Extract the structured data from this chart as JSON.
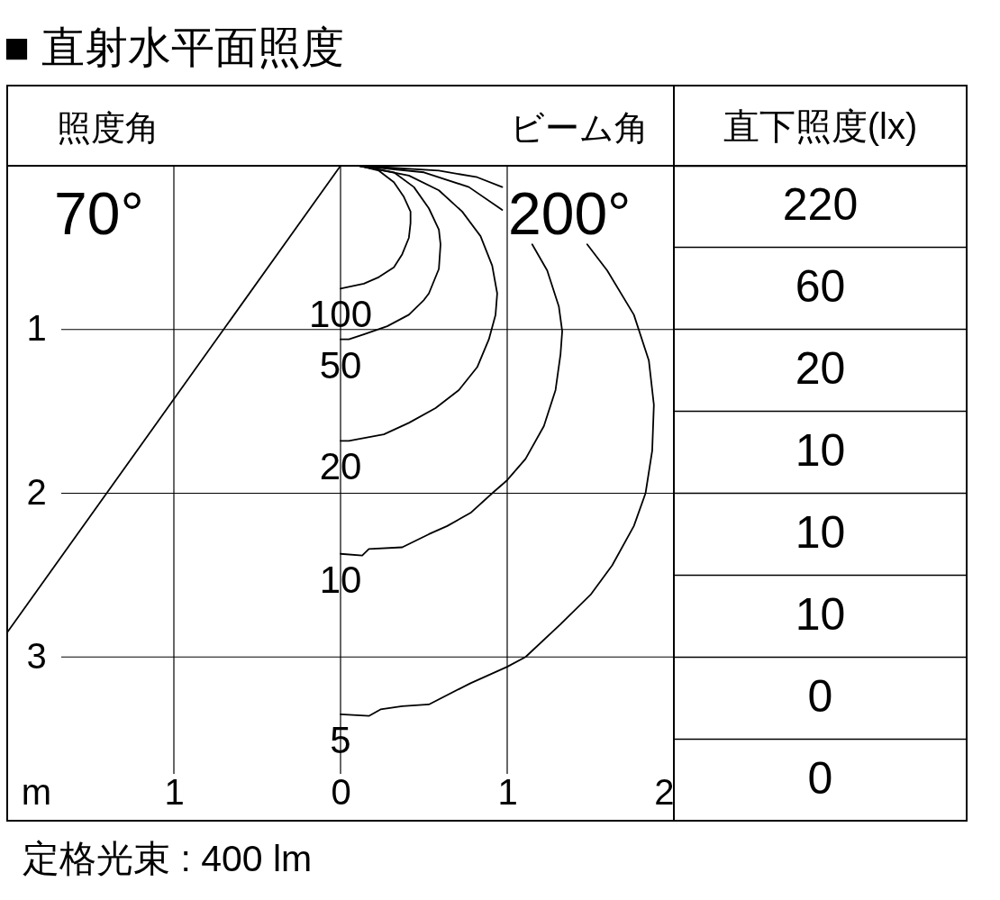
{
  "chart_data": [
    {
      "type": "line",
      "title": "■ 直射水平面照度",
      "xlabel": "m",
      "xlim": [
        -2,
        2
      ],
      "ylim": [
        4,
        0
      ],
      "xticks": [
        {
          "value": -1,
          "label": "1"
        },
        0,
        1,
        2
      ],
      "yticks": [
        1,
        2,
        3
      ],
      "grid": true,
      "series": [
        {
          "name": "100",
          "color": "#000000",
          "x": [
            0.11,
            0.23,
            0.32,
            0.38,
            0.42,
            0.42,
            0.41,
            0.37,
            0.32,
            0.23,
            0.14,
            0.05,
            0
          ],
          "values": [
            0,
            0.03,
            0.1,
            0.19,
            0.28,
            0.35,
            0.44,
            0.54,
            0.62,
            0.68,
            0.72,
            0.74,
            0.75
          ]
        },
        {
          "name": "50",
          "color": "#000000",
          "x": [
            0.11,
            0.32,
            0.44,
            0.53,
            0.59,
            0.6,
            0.59,
            0.53,
            0.5,
            0.41,
            0.28,
            0.14,
            0.05,
            0
          ],
          "values": [
            0,
            0.04,
            0.13,
            0.26,
            0.39,
            0.48,
            0.63,
            0.78,
            0.82,
            0.91,
            0.98,
            1.03,
            1.06,
            1.06
          ]
        },
        {
          "name": "20",
          "color": "#000000",
          "x": [
            0.11,
            0.41,
            0.59,
            0.73,
            0.84,
            0.91,
            0.94,
            0.93,
            0.89,
            0.82,
            0.71,
            0.57,
            0.41,
            0.26,
            0.1,
            0.05,
            0
          ],
          "values": [
            0,
            0.06,
            0.15,
            0.28,
            0.43,
            0.61,
            0.78,
            0.91,
            1.06,
            1.23,
            1.37,
            1.48,
            1.57,
            1.64,
            1.67,
            1.68,
            1.68
          ]
        },
        {
          "name": "10",
          "color": "#000000",
          "x": [
            0.11,
            0.5,
            0.77,
            0.97,
            null,
            1.15,
            1.24,
            1.31,
            1.33,
            1.32,
            1.29,
            1.22,
            1.11,
            1.0,
            0.91,
            0.78,
            0.64,
            0.53,
            0.37,
            0.17,
            0.13,
            0
          ],
          "values": [
            0,
            0.04,
            0.13,
            0.27,
            null,
            0.48,
            0.64,
            0.86,
            1.01,
            1.15,
            1.37,
            1.59,
            1.79,
            1.92,
            2.0,
            2.12,
            2.2,
            2.25,
            2.33,
            2.34,
            2.38,
            2.37
          ]
        },
        {
          "name": "5",
          "color": "#000000",
          "x": [
            0.11,
            0.59,
            0.82,
            0.97,
            null,
            1.48,
            1.6,
            1.76,
            1.85,
            1.88,
            1.87,
            1.83,
            1.76,
            1.63,
            1.5,
            1.32,
            1.11,
            1.0,
            0.78,
            0.53,
            0.37,
            0.24,
            0.17,
            0
          ],
          "values": [
            0,
            0.03,
            0.07,
            0.13,
            null,
            0.48,
            0.64,
            0.91,
            1.19,
            1.46,
            1.74,
            2.0,
            2.2,
            2.44,
            2.62,
            2.8,
            3.0,
            3.06,
            3.16,
            3.29,
            3.3,
            3.32,
            3.36,
            3.35
          ]
        },
        {
          "color": "#000000",
          "x": [
            0,
            -2
          ],
          "values": [
            0,
            2.85
          ]
        }
      ],
      "annotations": [
        "照度角",
        "70°",
        "ビーム角",
        "200°",
        "定格光束 : 400 lm"
      ]
    },
    {
      "type": "other",
      "title": "直下照度(lx)",
      "values": [
        220,
        60,
        20,
        10,
        10,
        10,
        0,
        0
      ],
      "data_labels": true
    }
  ]
}
